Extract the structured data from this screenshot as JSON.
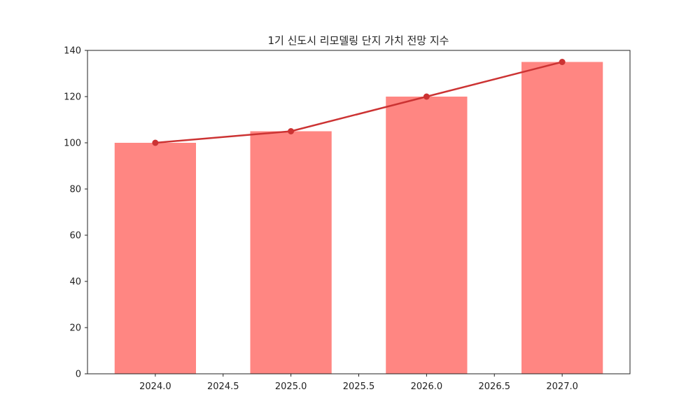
{
  "chart_data": {
    "type": "bar",
    "title": "1기 신도시 리모델링 단지 가치 전망 지수",
    "xlabel": "",
    "ylabel": "",
    "x": [
      2024,
      2025,
      2026,
      2027
    ],
    "series": [
      {
        "kind": "bar",
        "values": [
          100,
          105,
          120,
          135
        ],
        "color": "#ff8682"
      },
      {
        "kind": "line",
        "values": [
          100,
          105,
          120,
          135
        ],
        "color": "#cc3333"
      }
    ],
    "xlim": [
      2023.5,
      2027.5
    ],
    "ylim": [
      0,
      140
    ],
    "xticks": [
      "2024.0",
      "2024.5",
      "2025.0",
      "2025.5",
      "2026.0",
      "2026.5",
      "2027.0"
    ],
    "yticks": [
      "0",
      "20",
      "40",
      "60",
      "80",
      "100",
      "120",
      "140"
    ],
    "grid": false,
    "legend": "none"
  }
}
